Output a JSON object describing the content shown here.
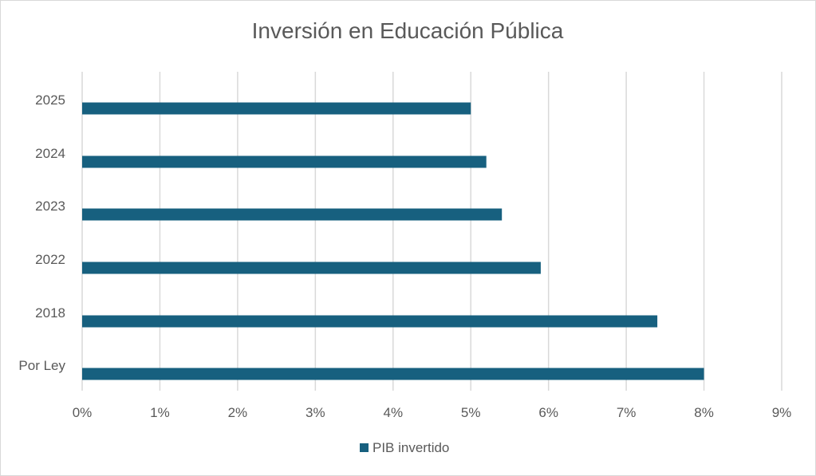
{
  "chart_data": {
    "type": "bar",
    "orientation": "horizontal",
    "title": "Inversión en Educación Pública",
    "categories": [
      "Por Ley",
      "2018",
      "2022",
      "2023",
      "2024",
      "2025"
    ],
    "series": [
      {
        "name": "PIB invertido",
        "values": [
          8.0,
          7.4,
          5.9,
          5.4,
          5.2,
          5.0
        ],
        "color": "#17607f"
      }
    ],
    "xlabel": "",
    "ylabel": "",
    "xlim": [
      0,
      9
    ],
    "xticks": [
      "0%",
      "1%",
      "2%",
      "3%",
      "4%",
      "5%",
      "6%",
      "7%",
      "8%",
      "9%"
    ],
    "grid": true,
    "legend": "bottom"
  }
}
